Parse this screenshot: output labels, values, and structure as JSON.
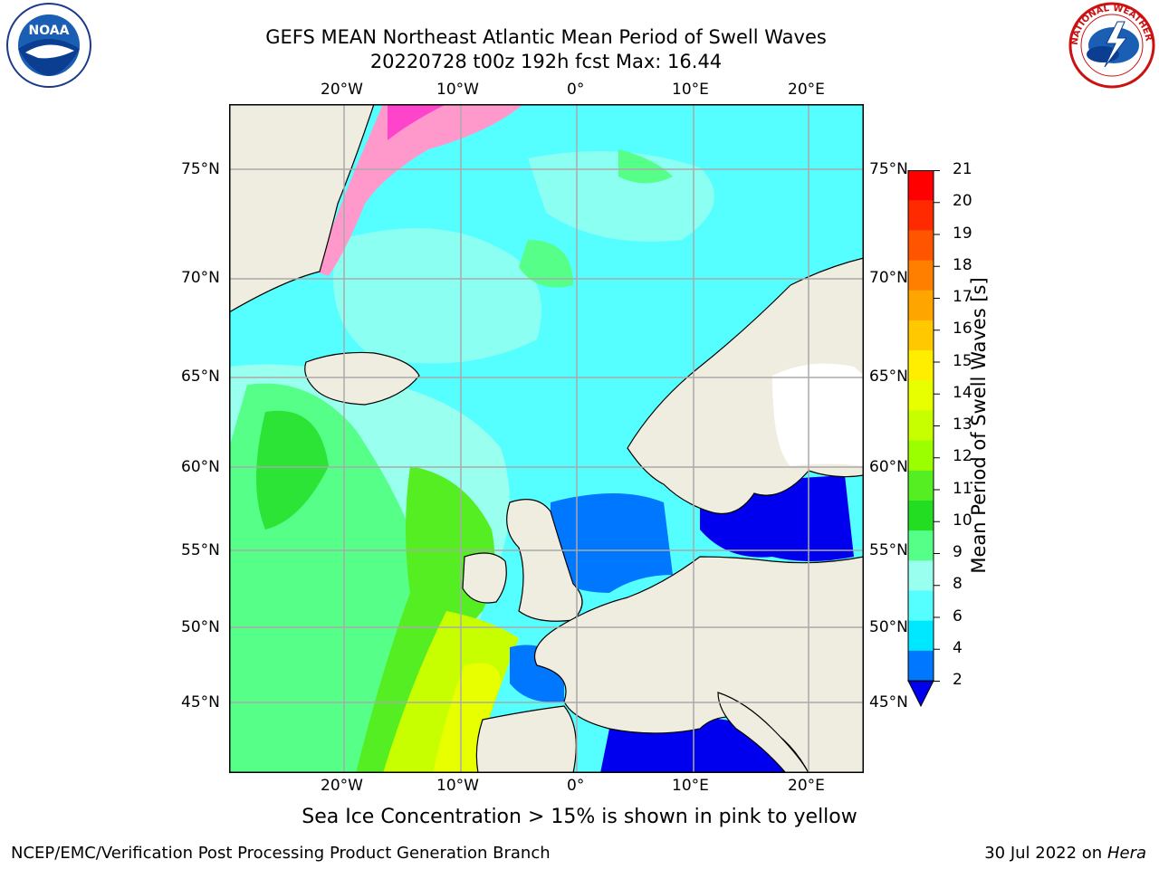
{
  "title_line1": "GEFS MEAN Northeast Atlantic Mean Period of Swell Waves",
  "title_line2": "20220728 t00z 192h fcst   Max: 16.44",
  "lon_ticks": [
    "20°W",
    "10°W",
    "0°",
    "10°E",
    "20°E"
  ],
  "lat_ticks": [
    "75°N",
    "70°N",
    "65°N",
    "60°N",
    "55°N",
    "50°N",
    "45°N"
  ],
  "colorbar": {
    "label": "Mean Period of Swell Waves [s]",
    "ticks": [
      "21",
      "20",
      "19",
      "18",
      "17",
      "16",
      "15",
      "14",
      "13",
      "12",
      "11",
      "10",
      "9",
      "8",
      "6",
      "4",
      "2"
    ],
    "colors": [
      "#ff0000",
      "#ff2a00",
      "#ff5500",
      "#ff7f00",
      "#ffa500",
      "#ffc800",
      "#ffee00",
      "#e8ff00",
      "#c8ff00",
      "#9bff00",
      "#55ee22",
      "#22dd22",
      "#55ff88",
      "#99ffee",
      "#55ffff",
      "#00e8ff",
      "#0077ff",
      "#0000ee"
    ]
  },
  "sea_ice_note": "Sea Ice Concentration > 15% is shown in pink to yellow",
  "footer_left": "NCEP/EMC/Verification Post Processing Product Generation Branch",
  "footer_date": "30 Jul 2022 on ",
  "footer_host": "Hera",
  "logos": {
    "left": "NOAA",
    "right_ring": "NATIONAL WEATHER SERVICE"
  }
}
